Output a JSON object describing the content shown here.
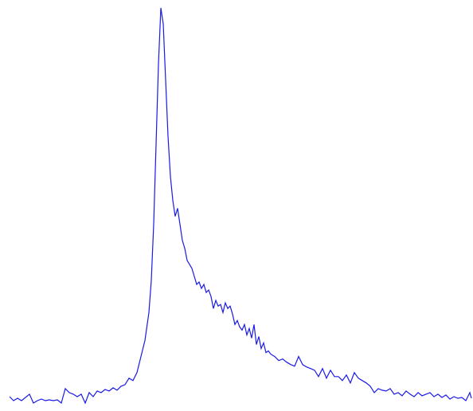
{
  "chart_data": {
    "type": "line",
    "x": [
      12,
      17,
      22,
      27,
      32,
      37,
      42,
      47,
      52,
      57,
      62,
      67,
      72,
      77,
      82,
      87,
      92,
      97,
      102,
      107,
      112,
      117,
      122,
      127,
      132,
      137,
      142,
      147,
      152,
      157,
      162,
      167,
      172,
      177,
      182,
      187,
      190,
      193,
      196,
      199,
      202,
      205,
      208,
      211,
      214,
      217,
      220,
      223,
      226,
      229,
      232,
      235,
      238,
      241,
      244,
      247,
      250,
      253,
      256,
      259,
      262,
      265,
      268,
      271,
      274,
      277,
      280,
      283,
      286,
      289,
      292,
      295,
      298,
      301,
      304,
      307,
      310,
      313,
      316,
      319,
      322,
      325,
      328,
      331,
      334,
      337,
      340,
      345,
      350,
      355,
      360,
      365,
      370,
      375,
      380,
      385,
      390,
      395,
      400,
      405,
      410,
      415,
      420,
      425,
      430,
      435,
      440,
      445,
      450,
      455,
      460,
      465,
      470,
      475,
      480,
      485,
      490,
      495,
      500,
      505,
      510,
      515,
      520,
      525,
      530,
      535,
      540,
      545,
      550,
      555,
      560,
      565,
      570,
      575,
      580,
      585,
      590,
      592
    ],
    "series": [
      {
        "color": "#1a1ae6",
        "values": [
          5,
          0,
          3,
          0,
          4,
          8,
          -3,
          0,
          2,
          0,
          1,
          0,
          1,
          -3,
          15,
          10,
          8,
          5,
          8,
          -3,
          10,
          5,
          12,
          10,
          14,
          12,
          16,
          13,
          18,
          20,
          28,
          25,
          35,
          55,
          75,
          110,
          150,
          220,
          320,
          420,
          490,
          470,
          400,
          330,
          280,
          250,
          230,
          240,
          220,
          200,
          190,
          175,
          170,
          165,
          155,
          145,
          148,
          140,
          145,
          135,
          138,
          130,
          115,
          125,
          118,
          120,
          110,
          122,
          115,
          118,
          108,
          95,
          100,
          92,
          88,
          95,
          82,
          90,
          78,
          95,
          70,
          80,
          65,
          72,
          60,
          62,
          58,
          55,
          50,
          52,
          48,
          45,
          43,
          55,
          45,
          42,
          40,
          38,
          30,
          40,
          28,
          38,
          30,
          30,
          25,
          32,
          22,
          35,
          28,
          25,
          22,
          18,
          10,
          15,
          13,
          12,
          15,
          8,
          10,
          6,
          12,
          8,
          5,
          10,
          6,
          8,
          10,
          5,
          8,
          4,
          7,
          2,
          5,
          3,
          4,
          0,
          10,
          3
        ]
      }
    ]
  }
}
